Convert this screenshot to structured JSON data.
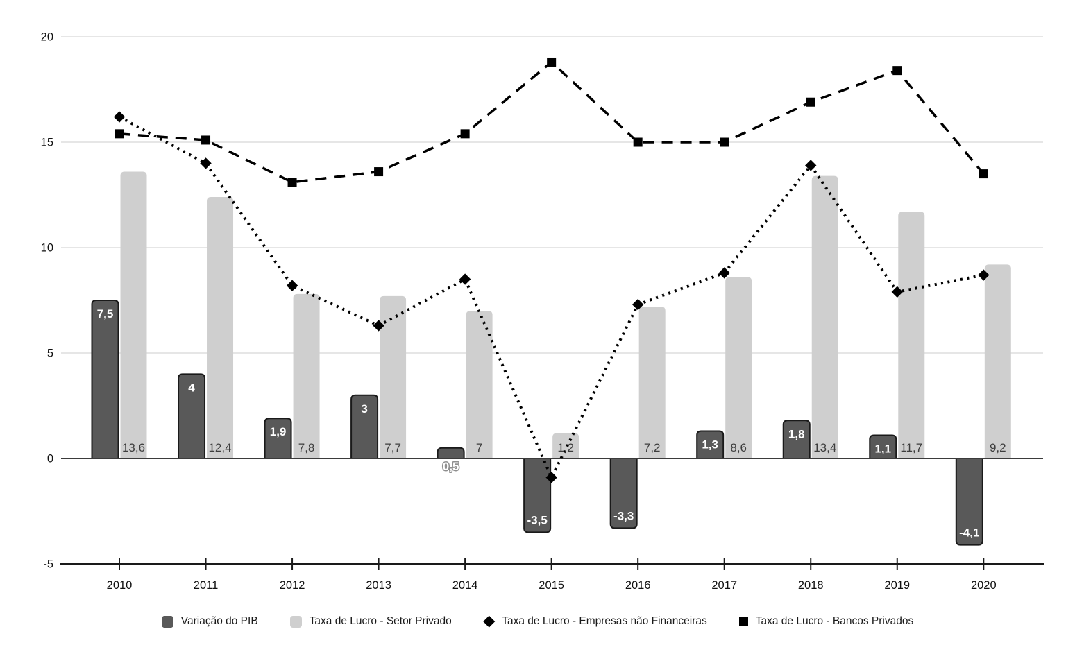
{
  "background": "#ffffff",
  "chart_data": {
    "type": "combo",
    "title": "",
    "categories": [
      "2010",
      "2011",
      "2012",
      "2013",
      "2014",
      "2015",
      "2016",
      "2017",
      "2018",
      "2019",
      "2020"
    ],
    "series": [
      {
        "name": "Variação do PIB",
        "type": "bar",
        "color": "#595959",
        "border_color": "#1a1a1a",
        "label_color": "#ffffff",
        "values": [
          7.5,
          4,
          1.9,
          3,
          0.5,
          -3.5,
          -3.3,
          1.3,
          1.8,
          1.1,
          -4.1
        ],
        "labels": [
          "7,5",
          "4",
          "1,9",
          "3",
          "0,5",
          "-3,5",
          "-3,3",
          "1,3",
          "1,8",
          "1,1",
          "-4,1"
        ]
      },
      {
        "name": "Taxa de Lucro - Setor Privado",
        "type": "bar",
        "color": "#cfcfcf",
        "label_color": "#3d3d3d",
        "values": [
          13.6,
          12.4,
          7.8,
          7.7,
          7,
          1.2,
          7.2,
          8.6,
          13.4,
          11.7,
          9.2
        ],
        "labels": [
          "13,6",
          "12,4",
          "7,8",
          "7,7",
          "7",
          "1,2",
          "7,2",
          "8,6",
          "13,4",
          "11,7",
          "9,2"
        ]
      },
      {
        "name": "Taxa de Lucro - Empresas não Financeiras",
        "type": "line",
        "style": "dotted",
        "marker": "diamond",
        "color": "#000000",
        "values": [
          16.2,
          14,
          8.2,
          6.3,
          8.5,
          -0.9,
          7.3,
          8.8,
          13.9,
          7.9,
          8.7
        ]
      },
      {
        "name": "Taxa de Lucro - Bancos Privados",
        "type": "line",
        "style": "dashed",
        "marker": "square",
        "color": "#000000",
        "values": [
          15.4,
          15.1,
          13.1,
          13.6,
          15.4,
          18.8,
          15,
          15,
          16.9,
          18.4,
          13.5
        ]
      }
    ],
    "y_axis": {
      "min": -5,
      "max": 20,
      "ticks": [
        20,
        15,
        10,
        5,
        0,
        -5
      ]
    },
    "grid": true,
    "gridline_color": "#cccccc",
    "zero_line_color": "#3b3b3b",
    "axis_line_color": "#1a1a1a",
    "legend_position": "bottom"
  }
}
